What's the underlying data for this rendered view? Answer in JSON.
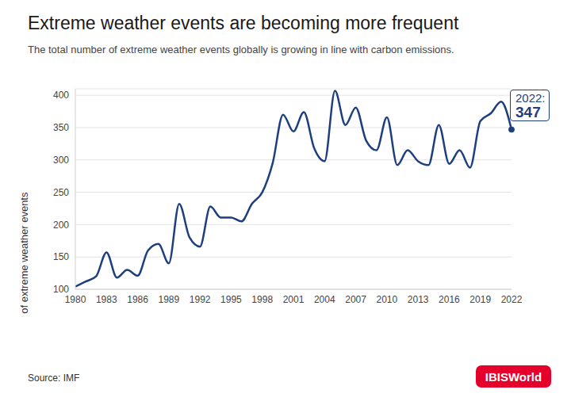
{
  "chart_data": {
    "type": "line",
    "title": "Extreme weather events are becoming more frequent",
    "subtitle": "The total number of extreme weather events globally is growing in line with carbon emissions.",
    "y_label": "Total number of extreme weather events",
    "x": [
      1980,
      1981,
      1982,
      1983,
      1984,
      1985,
      1986,
      1987,
      1988,
      1989,
      1990,
      1991,
      1992,
      1993,
      1994,
      1995,
      1996,
      1997,
      1998,
      1999,
      2000,
      2001,
      2002,
      2003,
      2004,
      2005,
      2006,
      2007,
      2008,
      2009,
      2010,
      2011,
      2012,
      2013,
      2014,
      2015,
      2016,
      2017,
      2018,
      2019,
      2020,
      2021,
      2022
    ],
    "values": [
      104,
      112,
      120,
      157,
      118,
      130,
      121,
      160,
      170,
      140,
      232,
      180,
      166,
      228,
      211,
      211,
      205,
      232,
      250,
      295,
      370,
      344,
      374,
      318,
      298,
      407,
      354,
      381,
      330,
      315,
      366,
      292,
      315,
      298,
      292,
      354,
      294,
      315,
      288,
      360,
      372,
      390,
      347
    ],
    "color": "#1e3f7f",
    "xlim": [
      1980,
      2022
    ],
    "xticks": [
      1980,
      1983,
      1986,
      1989,
      1992,
      1995,
      1998,
      2001,
      2004,
      2007,
      2010,
      2013,
      2016,
      2019,
      2022
    ],
    "ylim": [
      100,
      410
    ],
    "yticks": [
      100,
      150,
      200,
      250,
      300,
      350,
      400
    ],
    "grid": true,
    "annotation": "2022:",
    "source": "Source: IMF",
    "brand": "IBISWorld"
  }
}
